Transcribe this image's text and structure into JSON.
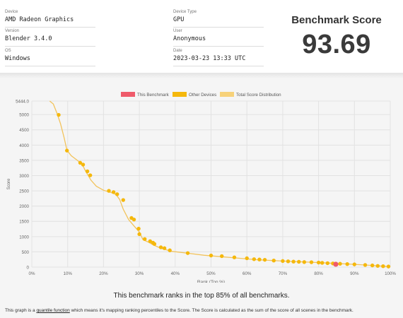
{
  "info": {
    "device_label": "Device",
    "device_value": "AMD Radeon Graphics",
    "version_label": "Version",
    "version_value": "Blender 3.4.0",
    "os_label": "OS",
    "os_value": "Windows",
    "device_type_label": "Device Type",
    "device_type_value": "GPU",
    "user_label": "User",
    "user_value": "Anonymous",
    "date_label": "Date",
    "date_value": "2023-03-23 13:33 UTC"
  },
  "score": {
    "title": "Benchmark Score",
    "value": "93.69"
  },
  "chart_data": {
    "type": "scatter",
    "xlabel": "Rank (Top %)",
    "ylabel": "Score",
    "xlim": [
      0,
      100
    ],
    "ylim": [
      0,
      5444
    ],
    "x_ticks": [
      "0%",
      "10%",
      "20%",
      "30%",
      "40%",
      "50%",
      "60%",
      "70%",
      "80%",
      "90%",
      "100%"
    ],
    "y_ticks": [
      "0",
      "500",
      "1000",
      "1500",
      "2000",
      "2500",
      "3000",
      "3500",
      "4000",
      "4500",
      "5000",
      "5444.0"
    ],
    "legend": {
      "placement": "top",
      "items": [
        {
          "label": "This Benchmark",
          "color": "#ef5b6b"
        },
        {
          "label": "Other Devices",
          "color": "#f5b80c"
        },
        {
          "label": "Total Score Distribution",
          "color": "#f7d27a"
        }
      ]
    },
    "distribution": [
      [
        5,
        5444
      ],
      [
        6,
        5350
      ],
      [
        7,
        5050
      ],
      [
        8,
        4700
      ],
      [
        9,
        4250
      ],
      [
        9.8,
        3830
      ],
      [
        11,
        3650
      ],
      [
        12.5,
        3520
      ],
      [
        14,
        3380
      ],
      [
        15,
        3150
      ],
      [
        16.5,
        2850
      ],
      [
        18,
        2650
      ],
      [
        20,
        2520
      ],
      [
        22,
        2450
      ],
      [
        23.5,
        2380
      ],
      [
        24.5,
        2220
      ],
      [
        25.5,
        1900
      ],
      [
        27,
        1560
      ],
      [
        28.5,
        1350
      ],
      [
        30,
        1150
      ],
      [
        31,
        900
      ],
      [
        32.5,
        820
      ],
      [
        34,
        720
      ],
      [
        36,
        620
      ],
      [
        39,
        520
      ],
      [
        44,
        450
      ],
      [
        48,
        390
      ],
      [
        53,
        340
      ],
      [
        58,
        290
      ],
      [
        63,
        240
      ],
      [
        70,
        200
      ],
      [
        78,
        160
      ],
      [
        85,
        120
      ],
      [
        90,
        90
      ],
      [
        95,
        55
      ],
      [
        98,
        30
      ],
      [
        100,
        15
      ]
    ],
    "other_devices": [
      [
        7.5,
        4990
      ],
      [
        9.8,
        3820
      ],
      [
        13.5,
        3420
      ],
      [
        14.3,
        3360
      ],
      [
        15.5,
        3140
      ],
      [
        16.3,
        3010
      ],
      [
        21.5,
        2500
      ],
      [
        22.8,
        2460
      ],
      [
        23.8,
        2390
      ],
      [
        25.5,
        2200
      ],
      [
        27.8,
        1610
      ],
      [
        28.5,
        1560
      ],
      [
        29.8,
        1260
      ],
      [
        30,
        1080
      ],
      [
        31.5,
        920
      ],
      [
        33,
        850
      ],
      [
        33.8,
        800
      ],
      [
        34.2,
        760
      ],
      [
        36,
        650
      ],
      [
        37,
        620
      ],
      [
        38.5,
        550
      ],
      [
        43.5,
        460
      ],
      [
        50,
        380
      ],
      [
        53,
        360
      ],
      [
        56.5,
        320
      ],
      [
        60,
        290
      ],
      [
        62,
        260
      ],
      [
        63.5,
        250
      ],
      [
        65,
        240
      ],
      [
        67.5,
        215
      ],
      [
        70,
        200
      ],
      [
        71.5,
        190
      ],
      [
        73,
        180
      ],
      [
        74.5,
        175
      ],
      [
        76,
        165
      ],
      [
        78,
        160
      ],
      [
        80,
        150
      ],
      [
        81,
        140
      ],
      [
        82.5,
        130
      ],
      [
        84,
        120
      ],
      [
        86,
        110
      ],
      [
        88,
        100
      ],
      [
        90,
        90
      ],
      [
        93,
        70
      ],
      [
        95,
        55
      ],
      [
        96.5,
        40
      ],
      [
        98,
        30
      ],
      [
        99.5,
        20
      ]
    ],
    "this_benchmark": {
      "x": 84.8,
      "y": 93.69,
      "label": "This Benchmark"
    }
  },
  "caption": "This benchmark ranks in the top 85% of all benchmarks.",
  "footnote": {
    "before": "This graph is a ",
    "link": "quantile function",
    "after": " which means it's mapping ranking percentiles to the Score. The Score is calculated as the sum of the score of all scenes in the benchmark."
  }
}
